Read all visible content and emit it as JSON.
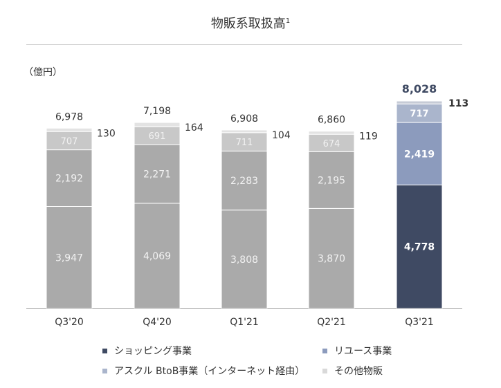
{
  "title": "物販系取扱高",
  "title_sup": "1",
  "unit_label": "（億円）",
  "colors": {
    "gray_bar": "#aaaaaa",
    "shopping_q321": "#3f4a63",
    "reuse_q321": "#8c9bbd",
    "askul_q321": "#aab5cc",
    "other_q321": "#c6cbd6",
    "askul_gray": "#c8c8c8",
    "other_gray": "#e3e3e3",
    "axis": "#999999"
  },
  "legend": [
    {
      "label": "ショッピング事業",
      "color": "#3f4a63"
    },
    {
      "label": "リユース事業",
      "color": "#8c9bbd"
    },
    {
      "label": "アスクル BtoB事業（インターネット経由）",
      "color": "#aab5cc"
    },
    {
      "label": "その他物販",
      "color": "#d9d9d9"
    }
  ],
  "chart_data": {
    "type": "bar",
    "stacked": true,
    "title": "物販系取扱高",
    "ylabel": "（億円）",
    "categories": [
      "Q3'20",
      "Q4'20",
      "Q1'21",
      "Q2'21",
      "Q3'21"
    ],
    "series": [
      {
        "name": "ショッピング事業",
        "values": [
          3947,
          4069,
          3808,
          3870,
          4778
        ],
        "labels": [
          "3,947",
          "4,069",
          "3,808",
          "3,870",
          "4,778"
        ]
      },
      {
        "name": "リユース事業",
        "values": [
          2192,
          2271,
          2283,
          2195,
          2419
        ],
        "labels": [
          "2,192",
          "2,271",
          "2,283",
          "2,195",
          "2,419"
        ]
      },
      {
        "name": "アスクル BtoB事業（インターネット経由）",
        "values": [
          707,
          691,
          711,
          674,
          717
        ],
        "labels": [
          "707",
          "691",
          "711",
          "674",
          "717"
        ]
      },
      {
        "name": "その他物販",
        "values": [
          130,
          164,
          104,
          119,
          113
        ],
        "labels": [
          "130",
          "164",
          "104",
          "119",
          "113"
        ]
      }
    ],
    "totals": [
      6978,
      7198,
      6908,
      6860,
      8028
    ],
    "total_labels": [
      "6,978",
      "7,198",
      "6,908",
      "6,860",
      "8,028"
    ],
    "ylim": [
      0,
      8028
    ],
    "grid": false,
    "legend_position": "bottom"
  }
}
